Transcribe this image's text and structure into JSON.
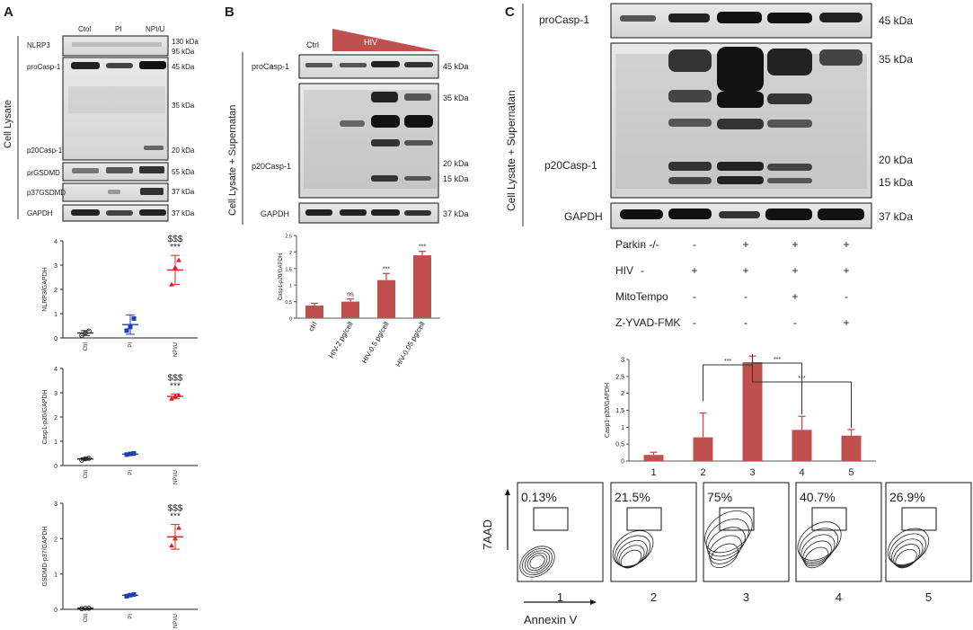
{
  "panels": {
    "A": {
      "letter": "A",
      "side_label": "Cell Lysate",
      "lanes": [
        "Ctol",
        "PI",
        "NPI/U"
      ],
      "bands": [
        "NLRP3",
        "proCasp-1",
        "p20Casp-1",
        "prGSDMD",
        "p37GSDMD",
        "GAPDH"
      ],
      "markers": [
        "130 kDa",
        "95 kDa",
        "45 kDa",
        "35 kDa",
        "20 kDa",
        "55 kDa",
        "37 kDa",
        "37 kDa"
      ]
    },
    "B": {
      "letter": "B",
      "side_label": "Cell Lysate + Supernatan",
      "ctrl_label": "Ctrl",
      "wedge_label": "HIV",
      "bands": [
        "proCasp-1",
        "p20Casp-1",
        "GAPDH"
      ],
      "markers": [
        "45 kDa",
        "35 kDa",
        "20 kDa",
        "15 kDa",
        "37 kDa"
      ]
    },
    "C": {
      "letter": "C",
      "side_label": "Cell Lysate + Supernatan",
      "bands": [
        "proCasp-1",
        "p20Casp-1",
        "GAPDH"
      ],
      "markers": [
        "45 kDa",
        "35 kDa",
        "20 kDa",
        "15 kDa",
        "37 kDa"
      ],
      "conditions": [
        {
          "label": "Parkin -/-",
          "signs": [
            "-",
            "-",
            "+",
            "+",
            "+"
          ]
        },
        {
          "label": "HIV",
          "signs": [
            "-",
            "+",
            "+",
            "+",
            "+"
          ]
        },
        {
          "label": "MitoTempo",
          "signs": [
            "-",
            "-",
            "-",
            "+",
            "-"
          ]
        },
        {
          "label": "Z-YVAD-FMK",
          "signs": [
            "-",
            "-",
            "-",
            "-",
            "+"
          ]
        }
      ],
      "flow": {
        "y_label": "7AAD",
        "x_label": "Annexin V",
        "percents": [
          "0.13%",
          "21.5%",
          "75%",
          "40.7%",
          "26.9%"
        ],
        "numbers": [
          "1",
          "2",
          "3",
          "4",
          "5"
        ]
      }
    }
  },
  "chart_data": [
    {
      "id": "A1",
      "type": "scatter",
      "ylabel": "NLRP3/GAPDH",
      "categories": [
        "Ctrl",
        "PI",
        "NPI/U"
      ],
      "ylim": [
        0,
        4
      ],
      "yticks": [
        "0",
        "1",
        "2",
        "3",
        "4"
      ],
      "series": [
        {
          "points": [
            0.1,
            0.2,
            0.28
          ],
          "mean": 0.2,
          "sd": 0.1,
          "color": "#222222"
        },
        {
          "points": [
            0.3,
            0.45,
            0.8
          ],
          "mean": 0.55,
          "sd": 0.4,
          "color": "#1f3fb4"
        },
        {
          "points": [
            2.2,
            2.9,
            3.2
          ],
          "mean": 2.8,
          "sd": 0.6,
          "color": "#e02020"
        }
      ],
      "annotation_lines": [
        "$$$",
        "***"
      ]
    },
    {
      "id": "A2",
      "type": "scatter",
      "ylabel": "Casp1-p20/GAPDH",
      "categories": [
        "Ctrl",
        "PI",
        "NPI/U"
      ],
      "ylim": [
        0,
        4
      ],
      "yticks": [
        "0",
        "1",
        "2",
        "3",
        "4"
      ],
      "series": [
        {
          "points": [
            0.22,
            0.28,
            0.3
          ],
          "mean": 0.27,
          "sd": 0.05,
          "color": "#222222"
        },
        {
          "points": [
            0.45,
            0.48,
            0.5
          ],
          "mean": 0.47,
          "sd": 0.04,
          "color": "#1f3fb4"
        },
        {
          "points": [
            2.75,
            2.85,
            2.9
          ],
          "mean": 2.85,
          "sd": 0.1,
          "color": "#e02020"
        }
      ],
      "annotation_lines": [
        "$$$",
        "***"
      ]
    },
    {
      "id": "A3",
      "type": "scatter",
      "ylabel": "GSDMD-p37/GAPDH",
      "categories": [
        "Ctrl",
        "PI",
        "NPI/U"
      ],
      "ylim": [
        0,
        3
      ],
      "yticks": [
        "0",
        "1",
        "2",
        "3"
      ],
      "series": [
        {
          "points": [
            0.02,
            0.03,
            0.03
          ],
          "mean": 0.03,
          "sd": 0.0,
          "color": "#222222"
        },
        {
          "points": [
            0.37,
            0.4,
            0.42
          ],
          "mean": 0.4,
          "sd": 0.03,
          "color": "#1f3fb4"
        },
        {
          "points": [
            1.8,
            2.0,
            2.3
          ],
          "mean": 2.05,
          "sd": 0.35,
          "color": "#e02020"
        }
      ],
      "annotation_lines": [
        "$$$",
        "***"
      ]
    },
    {
      "id": "B",
      "type": "bar",
      "ylabel": "Casp1-p20/GAPDH",
      "categories": [
        "ctrl",
        "HIV-2 pg/cell",
        "HIV-0.5 pg/cell",
        "HIV-0.05 pg/cell"
      ],
      "values": [
        0.38,
        0.5,
        1.15,
        1.9
      ],
      "errors": [
        0.07,
        0.08,
        0.2,
        0.12
      ],
      "annotations": [
        "",
        "ns",
        "***",
        "***"
      ],
      "ylim": [
        0,
        2.5
      ],
      "yticks": [
        "0",
        "0,5",
        "1",
        "1,5",
        "2",
        "2,5"
      ],
      "color": "#c0504d"
    },
    {
      "id": "C",
      "type": "bar",
      "ylabel": "Casp1-p20/GAPDH",
      "categories": [
        "1",
        "2",
        "3",
        "4",
        "5"
      ],
      "values": [
        0.18,
        0.7,
        2.92,
        0.92,
        0.75
      ],
      "errors": [
        0.08,
        0.72,
        0.18,
        0.4,
        0.18
      ],
      "ylim": [
        0,
        3
      ],
      "yticks": [
        "0",
        "0,5",
        "1",
        "1,5",
        "2",
        "2,5",
        "3"
      ],
      "comparisons": [
        {
          "from": 1,
          "to": 2,
          "label": "***"
        },
        {
          "from": 2,
          "to": 3,
          "label": "***"
        },
        {
          "from": 2,
          "to": 4,
          "label": "***"
        }
      ],
      "color": "#c0504d"
    }
  ]
}
